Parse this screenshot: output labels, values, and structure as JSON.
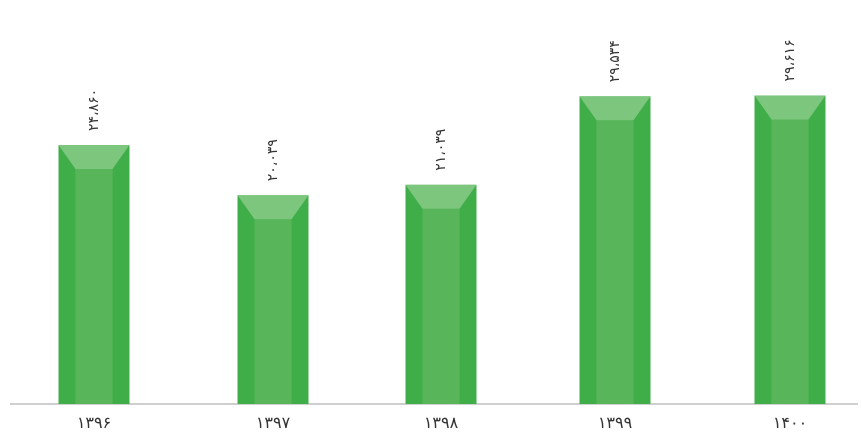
{
  "chart_data": {
    "type": "bar",
    "categories": [
      "۱۳۹۶",
      "۱۳۹۷",
      "۱۳۹۸",
      "۱۳۹۹",
      "۱۴۰۰"
    ],
    "values": [
      24860,
      20039,
      21039,
      29534,
      29616
    ],
    "data_labels": [
      "۲۴،۸۶۰",
      "۲۰،۰۳۹",
      "۲۱،۰۳۹",
      "۲۹،۵۳۴",
      "۲۹،۶۱۶"
    ],
    "ylim": [
      0,
      32000
    ],
    "grid": false,
    "legend": "none",
    "title": "",
    "xlabel": "",
    "ylabel": ""
  },
  "colors": {
    "bar_face": "#58b55a",
    "bar_side": "#3fae49",
    "bar_top": "#7cc67d",
    "axis": "#bfbfbf"
  }
}
